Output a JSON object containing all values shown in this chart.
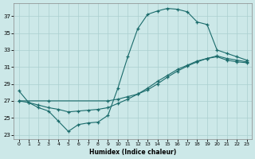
{
  "xlabel": "Humidex (Indice chaleur)",
  "bg_color": "#cce8e8",
  "grid_color": "#aacfcf",
  "line_color": "#1a6b6b",
  "xlim": [
    -0.5,
    23.5
  ],
  "ylim": [
    22.5,
    38.5
  ],
  "xticks": [
    0,
    1,
    2,
    3,
    4,
    5,
    6,
    7,
    8,
    9,
    10,
    11,
    12,
    13,
    14,
    15,
    16,
    17,
    18,
    19,
    20,
    21,
    22,
    23
  ],
  "yticks": [
    23,
    25,
    27,
    29,
    31,
    33,
    35,
    37
  ],
  "line1_x": [
    0,
    1,
    2,
    3,
    4,
    5,
    6,
    7,
    8,
    9,
    10,
    11,
    12,
    13,
    14,
    15,
    16,
    17,
    18,
    19,
    20,
    21,
    22,
    23
  ],
  "line1_y": [
    28.2,
    26.8,
    26.2,
    25.8,
    24.6,
    23.4,
    24.2,
    24.4,
    24.5,
    25.3,
    28.5,
    32.2,
    35.5,
    37.2,
    37.6,
    37.9,
    37.8,
    37.5,
    36.3,
    36.0,
    33.0,
    32.6,
    32.2,
    31.8
  ],
  "line2_x": [
    0,
    3,
    9,
    10,
    11,
    12,
    13,
    14,
    15,
    16,
    17,
    18,
    19,
    20,
    21,
    22,
    23
  ],
  "line2_y": [
    27.0,
    27.0,
    27.0,
    27.2,
    27.5,
    27.8,
    28.3,
    29.0,
    29.8,
    30.5,
    31.1,
    31.6,
    32.0,
    32.3,
    32.0,
    31.8,
    31.6
  ],
  "line3_x": [
    0,
    1,
    2,
    3,
    4,
    5,
    6,
    7,
    8,
    9,
    10,
    11,
    12,
    13,
    14,
    15,
    16,
    17,
    18,
    19,
    20,
    21,
    22,
    23
  ],
  "line3_y": [
    27.0,
    26.8,
    26.5,
    26.2,
    26.0,
    25.7,
    25.8,
    25.9,
    26.0,
    26.2,
    26.7,
    27.2,
    27.8,
    28.5,
    29.3,
    30.0,
    30.7,
    31.2,
    31.7,
    32.0,
    32.2,
    31.8,
    31.6,
    31.5
  ]
}
